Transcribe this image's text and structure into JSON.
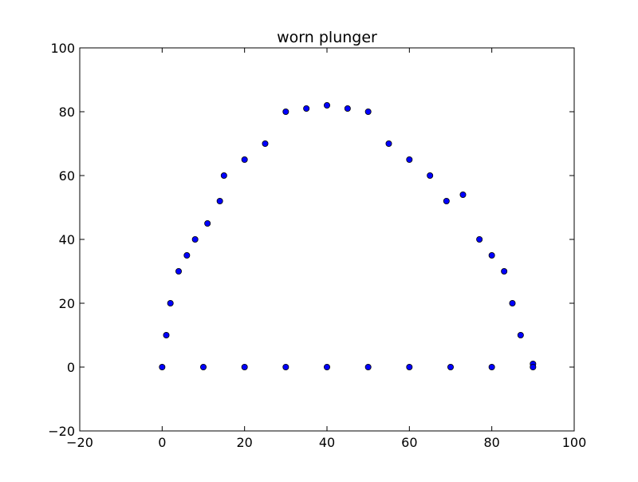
{
  "chart_data": {
    "type": "scatter",
    "title": "worn plunger",
    "xlabel": "",
    "ylabel": "",
    "xlim": [
      -20,
      100
    ],
    "ylim": [
      -20,
      100
    ],
    "xticks": [
      -20,
      0,
      20,
      40,
      60,
      80,
      100
    ],
    "yticks": [
      -20,
      0,
      20,
      40,
      60,
      80,
      100
    ],
    "xtick_labels": [
      "−20",
      "0",
      "20",
      "40",
      "60",
      "80",
      "100"
    ],
    "ytick_labels": [
      "−20",
      "0",
      "20",
      "40",
      "60",
      "80",
      "100"
    ],
    "grid": false,
    "legend": "none",
    "marker_color": "#0000ff",
    "marker_edge_color": "#000000",
    "points": [
      {
        "x": 0,
        "y": 0
      },
      {
        "x": 1,
        "y": 10
      },
      {
        "x": 2,
        "y": 20
      },
      {
        "x": 4,
        "y": 30
      },
      {
        "x": 6,
        "y": 35
      },
      {
        "x": 8,
        "y": 40
      },
      {
        "x": 11,
        "y": 45
      },
      {
        "x": 14,
        "y": 52
      },
      {
        "x": 15,
        "y": 60
      },
      {
        "x": 20,
        "y": 65
      },
      {
        "x": 25,
        "y": 70
      },
      {
        "x": 30,
        "y": 80
      },
      {
        "x": 35,
        "y": 81
      },
      {
        "x": 40,
        "y": 82
      },
      {
        "x": 45,
        "y": 81
      },
      {
        "x": 50,
        "y": 80
      },
      {
        "x": 55,
        "y": 70
      },
      {
        "x": 60,
        "y": 65
      },
      {
        "x": 65,
        "y": 60
      },
      {
        "x": 69,
        "y": 52
      },
      {
        "x": 73,
        "y": 54
      },
      {
        "x": 77,
        "y": 40
      },
      {
        "x": 80,
        "y": 35
      },
      {
        "x": 83,
        "y": 30
      },
      {
        "x": 85,
        "y": 20
      },
      {
        "x": 87,
        "y": 10
      },
      {
        "x": 90,
        "y": 1
      },
      {
        "x": 90,
        "y": 0
      },
      {
        "x": 80,
        "y": 0
      },
      {
        "x": 70,
        "y": 0
      },
      {
        "x": 60,
        "y": 0
      },
      {
        "x": 50,
        "y": 0
      },
      {
        "x": 40,
        "y": 0
      },
      {
        "x": 30,
        "y": 0
      },
      {
        "x": 20,
        "y": 0
      },
      {
        "x": 10,
        "y": 0
      }
    ]
  }
}
